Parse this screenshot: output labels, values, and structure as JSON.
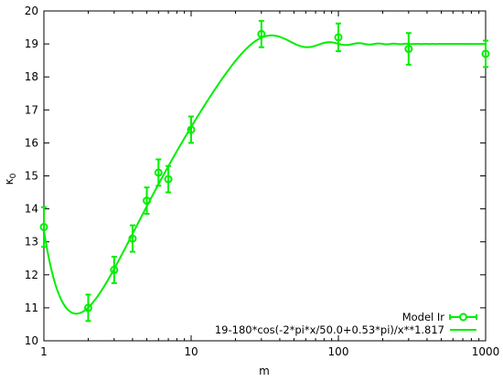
{
  "chart_data": {
    "type": "scatter",
    "xlabel": "m",
    "ylabel": "κ",
    "ylabel_subscript": "0",
    "x_scale": "log",
    "xlim": [
      1,
      1000
    ],
    "ylim": [
      10,
      20
    ],
    "grid": false,
    "legend_position": "bottom-right",
    "x_ticks": [
      {
        "value": 1,
        "label": "1"
      },
      {
        "value": 10,
        "label": "10"
      },
      {
        "value": 100,
        "label": "100"
      },
      {
        "value": 1000,
        "label": "1000"
      }
    ],
    "y_ticks": [
      {
        "value": 10,
        "label": "10"
      },
      {
        "value": 11,
        "label": "11"
      },
      {
        "value": 12,
        "label": "12"
      },
      {
        "value": 13,
        "label": "13"
      },
      {
        "value": 14,
        "label": "14"
      },
      {
        "value": 15,
        "label": "15"
      },
      {
        "value": 16,
        "label": "16"
      },
      {
        "value": 17,
        "label": "17"
      },
      {
        "value": 18,
        "label": "18"
      },
      {
        "value": 19,
        "label": "19"
      },
      {
        "value": 20,
        "label": "20"
      }
    ],
    "series": [
      {
        "name": "Model Ir",
        "kind": "points-with-errorbars",
        "color": "#00ee00",
        "points": [
          {
            "x": 1,
            "y": 13.45,
            "err": 0.6
          },
          {
            "x": 2,
            "y": 11.0,
            "err": 0.4
          },
          {
            "x": 3,
            "y": 12.15,
            "err": 0.4
          },
          {
            "x": 4,
            "y": 13.1,
            "err": 0.4
          },
          {
            "x": 5,
            "y": 14.25,
            "err": 0.4
          },
          {
            "x": 6,
            "y": 15.1,
            "err": 0.4
          },
          {
            "x": 7,
            "y": 14.9,
            "err": 0.4
          },
          {
            "x": 10,
            "y": 16.4,
            "err": 0.4
          },
          {
            "x": 30,
            "y": 19.3,
            "err": 0.4
          },
          {
            "x": 100,
            "y": 19.2,
            "err": 0.42
          },
          {
            "x": 300,
            "y": 18.85,
            "err": 0.48
          },
          {
            "x": 1000,
            "y": 18.7,
            "err": 0.4
          }
        ]
      },
      {
        "name": "19-180*cos(-2*pi*x/50.0+0.53*pi)/x**1.817",
        "kind": "line",
        "color": "#00ee00",
        "function": {
          "a": 19,
          "b": 180,
          "period": 50.0,
          "phase_pi": 0.53,
          "power": 1.817
        }
      }
    ]
  }
}
